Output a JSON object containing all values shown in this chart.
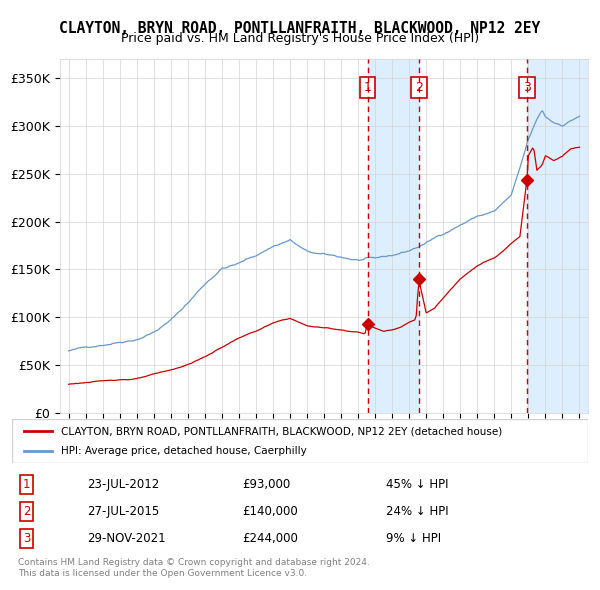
{
  "title": "CLAYTON, BRYN ROAD, PONTLLANFRAITH, BLACKWOOD, NP12 2EY",
  "subtitle": "Price paid vs. HM Land Registry's House Price Index (HPI)",
  "legend_line1": "CLAYTON, BRYN ROAD, PONTLLANFRAITH, BLACKWOOD, NP12 2EY (detached house)",
  "legend_line2": "HPI: Average price, detached house, Caerphilly",
  "footer_line1": "Contains HM Land Registry data © Crown copyright and database right 2024.",
  "footer_line2": "This data is licensed under the Open Government Licence v3.0.",
  "sale_events": [
    {
      "num": 1,
      "date": "23-JUL-2012",
      "price": 93000,
      "pct": "45%",
      "dir": "↓"
    },
    {
      "num": 2,
      "date": "27-JUL-2015",
      "price": 140000,
      "pct": "24%",
      "dir": "↓"
    },
    {
      "num": 3,
      "date": "29-NOV-2021",
      "price": 244000,
      "pct": "9%",
      "dir": "↓"
    }
  ],
  "sale_dates_mpl": [
    2012.556,
    2015.569,
    2021.912
  ],
  "sale_prices": [
    93000,
    140000,
    244000
  ],
  "red_color": "#cc0000",
  "blue_color": "#6699cc",
  "shade_color": "#ddeeff",
  "dashed_color": "#cc0000",
  "ylim": [
    0,
    370000
  ],
  "xlim_start": 1994.5,
  "xlim_end": 2025.5,
  "yticks": [
    0,
    50000,
    100000,
    150000,
    200000,
    250000,
    300000,
    350000
  ],
  "ytick_labels": [
    "£0",
    "£50K",
    "£100K",
    "£150K",
    "£200K",
    "£250K",
    "£300K",
    "£350K"
  ],
  "xticks": [
    1995,
    1996,
    1997,
    1998,
    1999,
    2000,
    2001,
    2002,
    2003,
    2004,
    2005,
    2006,
    2007,
    2008,
    2009,
    2010,
    2011,
    2012,
    2013,
    2014,
    2015,
    2016,
    2017,
    2018,
    2019,
    2020,
    2021,
    2022,
    2023,
    2024,
    2025
  ]
}
